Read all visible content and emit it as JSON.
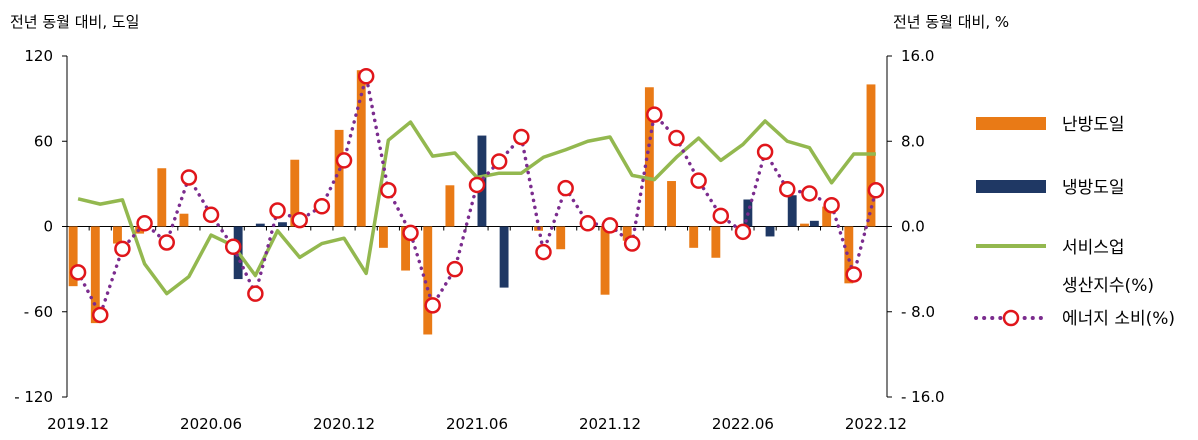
{
  "chart_data": {
    "type": "bar",
    "left_unit": "전년 동월 대비, 도일",
    "right_unit": "전년 동월 대비, %",
    "x": [
      "2019.12",
      "2020.01",
      "2020.02",
      "2020.03",
      "2020.04",
      "2020.05",
      "2020.06",
      "2020.07",
      "2020.08",
      "2020.09",
      "2020.10",
      "2020.11",
      "2020.12",
      "2021.01",
      "2021.02",
      "2021.03",
      "2021.04",
      "2021.05",
      "2021.06",
      "2021.07",
      "2021.08",
      "2021.09",
      "2021.10",
      "2021.11",
      "2021.12",
      "2022.01",
      "2022.02",
      "2022.03",
      "2022.04",
      "2022.05",
      "2022.06",
      "2022.07",
      "2022.08",
      "2022.09",
      "2022.10",
      "2022.11",
      "2022.12"
    ],
    "x_tick_labels": [
      "2019.12",
      "2020.06",
      "2020.12",
      "2021.06",
      "2021.12",
      "2022.06",
      "2022.12"
    ],
    "x_tick_indices": [
      0,
      6,
      12,
      18,
      24,
      30,
      36
    ],
    "y_left": {
      "ticks": [
        "120",
        "60",
        "0",
        "- 60",
        "- 120"
      ],
      "min": -120,
      "max": 120
    },
    "y_right": {
      "ticks": [
        "16.0",
        "8.0",
        "0.0",
        "- 8.0",
        "- 16.0"
      ],
      "min": -16,
      "max": 16
    },
    "series": [
      {
        "name": "난방도일",
        "kind": "bar",
        "axis": "left",
        "color": "#E97A16",
        "values": [
          -42,
          -68,
          -12,
          -5,
          41,
          9,
          0,
          0,
          0,
          0,
          47,
          0,
          68,
          110,
          -15,
          -31,
          -76,
          29,
          0,
          0,
          0,
          -3,
          -16,
          0,
          -48,
          -10,
          98,
          32,
          -15,
          -22,
          0,
          0,
          0,
          2,
          14,
          -40,
          100
        ]
      },
      {
        "name": "냉방도일",
        "kind": "bar",
        "axis": "left",
        "color": "#1F3864",
        "values": [
          0,
          0,
          0,
          0,
          0,
          0,
          0,
          -37,
          2,
          3,
          0,
          0,
          0,
          0,
          0,
          0,
          0,
          0,
          64,
          -43,
          0,
          0,
          0,
          0,
          0,
          0,
          0,
          0,
          0,
          0,
          19,
          -7,
          22,
          4,
          0,
          0,
          0
        ]
      },
      {
        "name": "서비스업 생산지수(%)",
        "kind": "line",
        "axis": "right",
        "color": "#93B84F",
        "values": [
          2.6,
          2.1,
          2.5,
          -3.5,
          -6.3,
          -4.7,
          -0.8,
          -1.8,
          -4.6,
          -0.4,
          -2.9,
          -1.6,
          -1.1,
          -4.4,
          8.1,
          9.8,
          6.6,
          6.9,
          4.6,
          5.0,
          5.0,
          6.5,
          7.2,
          8.0,
          8.4,
          4.8,
          4.4,
          6.5,
          8.3,
          6.2,
          7.7,
          9.9,
          8.0,
          7.4,
          4.1,
          6.8,
          6.8
        ],
        "note": "legend label wraps: 서비스업 / 생산지수(%)"
      },
      {
        "name": "에너지 소비(%)",
        "kind": "dotted-line-markers",
        "axis": "right",
        "color": "#7B2C8E",
        "marker_color": "#E0161B",
        "values": [
          -4.3,
          -8.3,
          -2.1,
          0.3,
          -1.5,
          4.6,
          1.1,
          -1.9,
          -6.3,
          1.5,
          0.6,
          1.9,
          6.2,
          14.1,
          3.4,
          -0.6,
          -7.4,
          -4.0,
          3.9,
          6.1,
          8.4,
          -2.4,
          3.6,
          0.3,
          0.1,
          -1.6,
          10.5,
          8.3,
          4.3,
          1.0,
          -0.5,
          7.0,
          3.5,
          3.1,
          2.0,
          -4.5,
          3.4
        ]
      }
    ],
    "legend": [
      {
        "label": "난방도일",
        "symbol": "bar",
        "color": "#E97A16"
      },
      {
        "label": "냉방도일",
        "symbol": "bar",
        "color": "#1F3864"
      },
      {
        "label_line1": "서비스업",
        "label_line2": "생산지수(%)",
        "symbol": "line",
        "color": "#93B84F"
      },
      {
        "label": "에너지 소비(%)",
        "symbol": "dotted-marker",
        "color": "#7B2C8E",
        "marker_color": "#E0161B"
      }
    ],
    "legend_position": "right",
    "grid": false
  }
}
